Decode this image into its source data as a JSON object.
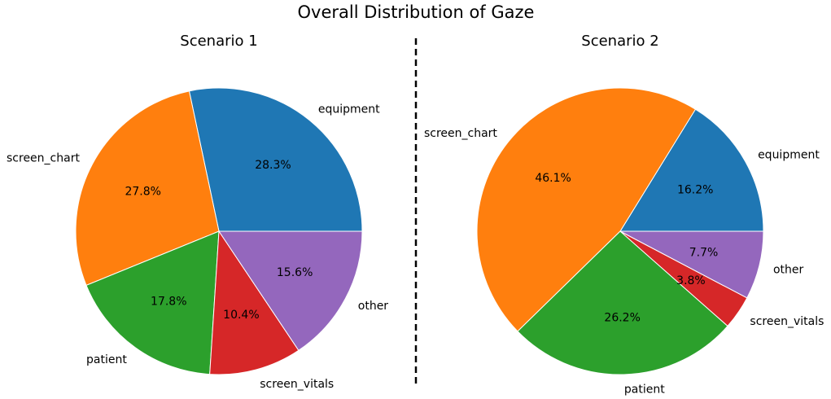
{
  "title": "Overall Distribution of Gaze",
  "colors": {
    "equipment": "#1f77b4",
    "screen_chart": "#ff7f0e",
    "patient": "#2ca02c",
    "screen_vitals": "#d62728",
    "other": "#9467bd"
  },
  "chart_data": [
    {
      "type": "pie",
      "title": "Scenario 1",
      "labels": [
        "equipment",
        "screen_chart",
        "patient",
        "screen_vitals",
        "other"
      ],
      "values": [
        28.3,
        27.8,
        17.8,
        10.4,
        15.6
      ],
      "pct_labels": [
        "28.3%",
        "27.8%",
        "17.8%",
        "10.4%",
        "15.6%"
      ]
    },
    {
      "type": "pie",
      "title": "Scenario 2",
      "labels": [
        "equipment",
        "screen_chart",
        "patient",
        "screen_vitals",
        "other"
      ],
      "values": [
        16.2,
        46.1,
        26.2,
        3.8,
        7.7
      ],
      "pct_labels": [
        "16.2%",
        "46.1%",
        "26.2%",
        "3.8%",
        "7.7%"
      ]
    }
  ]
}
